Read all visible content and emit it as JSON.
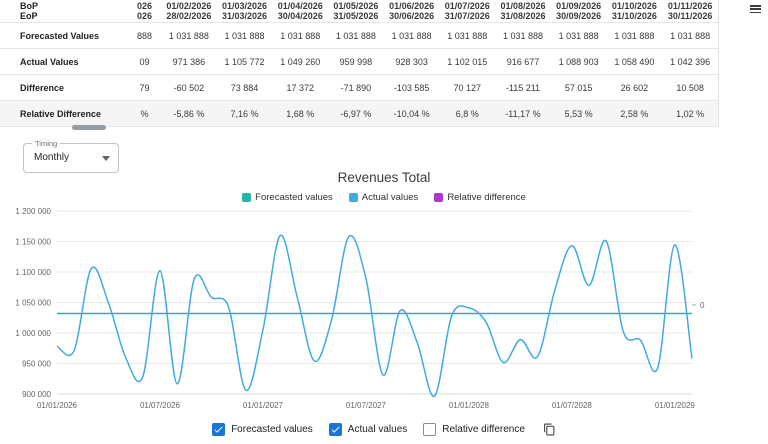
{
  "table": {
    "row_labels": {
      "bop": "BoP",
      "eop": "EoP",
      "forecasted": "Forecasted Values",
      "actual": "Actual Values",
      "difference": "Difference",
      "relative": "Relative Difference"
    },
    "clipped_column": {
      "bop": "026",
      "eop": "026",
      "forecasted": "888",
      "actual": "09",
      "difference": "79",
      "relative": "%"
    },
    "columns": [
      {
        "bop": "01/02/2026",
        "eop": "28/02/2026",
        "forecasted": "1 031 888",
        "actual": "971 386",
        "difference": "-60 502",
        "relative": "-5,86 %"
      },
      {
        "bop": "01/03/2026",
        "eop": "31/03/2026",
        "forecasted": "1 031 888",
        "actual": "1 105 772",
        "difference": "73 884",
        "relative": "7,16 %"
      },
      {
        "bop": "01/04/2026",
        "eop": "30/04/2026",
        "forecasted": "1 031 888",
        "actual": "1 049 260",
        "difference": "17 372",
        "relative": "1,68 %"
      },
      {
        "bop": "01/05/2026",
        "eop": "31/05/2026",
        "forecasted": "1 031 888",
        "actual": "959 998",
        "difference": "-71 890",
        "relative": "-6,97 %"
      },
      {
        "bop": "01/06/2026",
        "eop": "30/06/2026",
        "forecasted": "1 031 888",
        "actual": "928 303",
        "difference": "-103 585",
        "relative": "-10,04 %"
      },
      {
        "bop": "01/07/2026",
        "eop": "31/07/2026",
        "forecasted": "1 031 888",
        "actual": "1 102 015",
        "difference": "70 127",
        "relative": "6,8 %"
      },
      {
        "bop": "01/08/2026",
        "eop": "31/08/2026",
        "forecasted": "1 031 888",
        "actual": "916 677",
        "difference": "-115 211",
        "relative": "-11,17 %"
      },
      {
        "bop": "01/09/2026",
        "eop": "30/09/2026",
        "forecasted": "1 031 888",
        "actual": "1 088 903",
        "difference": "57 015",
        "relative": "5,53 %"
      },
      {
        "bop": "01/10/2026",
        "eop": "31/10/2026",
        "forecasted": "1 031 888",
        "actual": "1 058 490",
        "difference": "26 602",
        "relative": "2,58 %"
      },
      {
        "bop": "01/11/2026",
        "eop": "30/11/2026",
        "forecasted": "1 031 888",
        "actual": "1 042 396",
        "difference": "10 508",
        "relative": "1,02 %"
      }
    ]
  },
  "timing": {
    "label": "Timing",
    "value": "Monthly"
  },
  "chart_data": {
    "type": "line",
    "title": "Revenues Total",
    "grid": true,
    "legend_position": "top",
    "x_tick_labels": [
      "01/01/2026",
      "01/07/2026",
      "01/01/2027",
      "01/07/2027",
      "01/01/2028",
      "01/07/2028",
      "01/01/2029"
    ],
    "y_tick_labels": [
      "1 200 000",
      "1 150 000",
      "1 100 000",
      "1 050 000",
      "1 000 000",
      "950 000",
      "900 000"
    ],
    "ylim": [
      900000,
      1200000
    ],
    "secondary_axis_zero_label": "0",
    "legend": [
      {
        "label": "Forecasted values",
        "color": "#2bb3a3"
      },
      {
        "label": "Actual values",
        "color": "#42a9e4"
      },
      {
        "label": "Relative difference",
        "color": "#b136c9"
      }
    ],
    "series": [
      {
        "name": "Forecasted values",
        "type": "line",
        "color": "#2bb3a3",
        "constant_value": 1031888
      },
      {
        "name": "Actual values",
        "type": "line",
        "color": "#42a9e4",
        "x_start": "01/01/2026",
        "x_step": "1 month",
        "values": [
          978309,
          971386,
          1105772,
          1049260,
          959998,
          928303,
          1102015,
          916677,
          1088903,
          1058490,
          1042396,
          906220,
          1004870,
          1159440,
          1058332,
          954081,
          1021776,
          1158092,
          1089655,
          931207,
          1036914,
          983559,
          896733,
          1028405,
          1041118,
          1017666,
          951843,
          989204,
          961377,
          1069541,
          1143298,
          1077820,
          1150634,
          1001875,
          988213,
          943065,
          1144480,
          958217
        ]
      },
      {
        "name": "Relative difference",
        "type": "line",
        "color": "#b136c9",
        "visible": false,
        "values": []
      }
    ]
  },
  "controls": {
    "checkboxes": [
      {
        "label": "Forecasted values",
        "checked": true
      },
      {
        "label": "Actual values",
        "checked": true
      },
      {
        "label": "Relative difference",
        "checked": false
      }
    ]
  },
  "icons": {
    "menu": "menu-icon",
    "select_arrow": "chevron-down-icon",
    "copy": "copy-icon"
  },
  "colors": {
    "checkbox_checked": "#1976d2",
    "grid": "#e8e8e8",
    "axis_text": "#666666",
    "scrollbar_thumb": "#949ca4"
  }
}
